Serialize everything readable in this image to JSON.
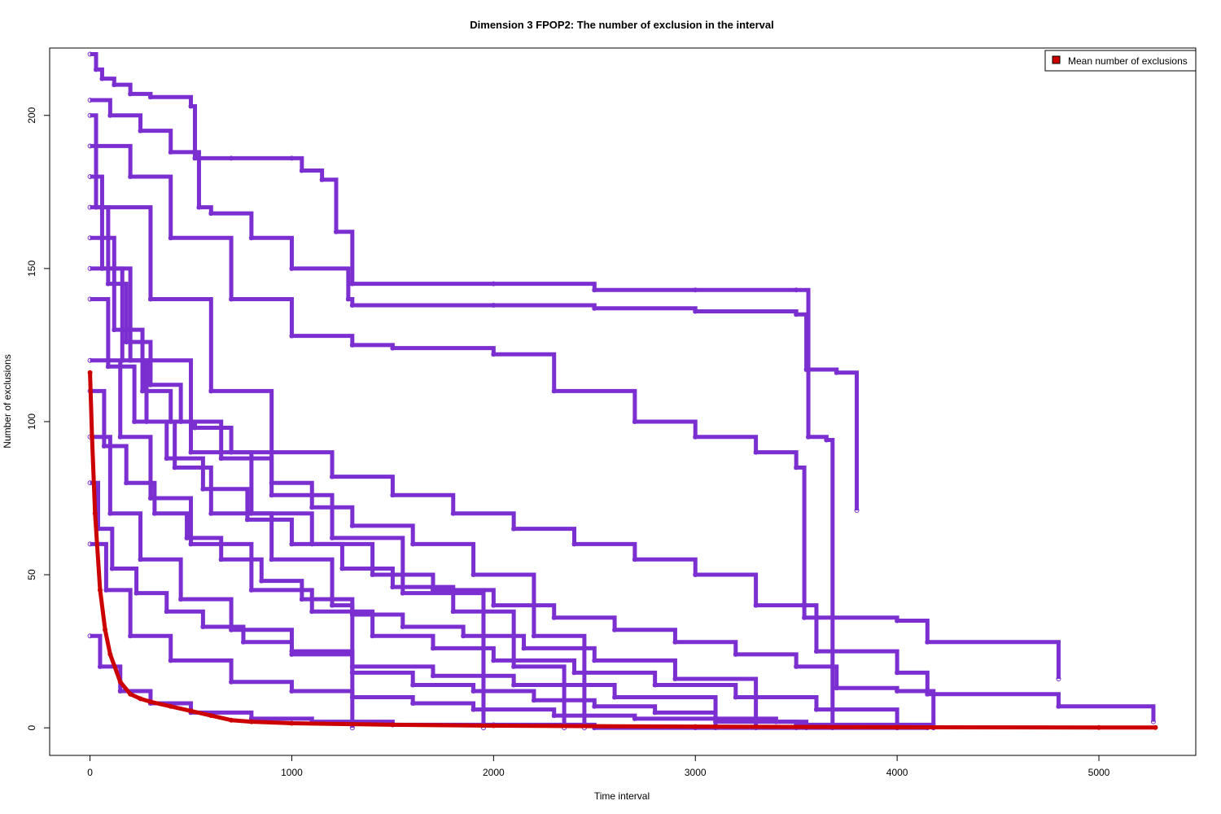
{
  "chart_data": {
    "type": "line",
    "title": "Dimension 3 FPOP2: The number of exclusion in the interval",
    "xlabel": "Time interval",
    "ylabel": "Number of exclusions",
    "xlim": [
      -200,
      5480
    ],
    "ylim": [
      -9,
      222
    ],
    "xticks": [
      0,
      1000,
      2000,
      3000,
      4000,
      5000
    ],
    "yticks": [
      0,
      50,
      100,
      150,
      200
    ],
    "legend": {
      "position": "top-right",
      "entries": [
        {
          "label": "Mean number of exclusions",
          "color": "#cc0000"
        }
      ]
    },
    "colors": {
      "runs": "#7b2fd0",
      "mean": "#cc0000"
    },
    "series": [
      {
        "name": "Mean number of exclusions",
        "x": [
          0,
          10,
          25,
          50,
          75,
          100,
          150,
          200,
          250,
          300,
          400,
          500,
          600,
          700,
          800,
          1000,
          1500,
          2000,
          3000,
          4000,
          5000,
          5280
        ],
        "y": [
          116,
          95,
          70,
          45,
          32,
          24,
          15,
          11,
          9.5,
          8.5,
          7,
          5.5,
          4,
          2.5,
          2,
          1.5,
          1,
          0.7,
          0.4,
          0.2,
          0.1,
          0.1
        ]
      },
      {
        "x": [
          0,
          30,
          60,
          120,
          200,
          300,
          500,
          520,
          700,
          1000,
          1050,
          1150,
          1220,
          1300,
          2000,
          2500,
          3000,
          3500,
          3560,
          3650,
          3680
        ],
        "y": [
          220,
          215,
          212,
          210,
          207,
          206,
          203,
          186,
          186,
          186,
          182,
          179,
          162,
          145,
          145,
          143,
          143,
          143,
          95,
          94,
          0
        ]
      },
      {
        "x": [
          0,
          100,
          250,
          400,
          540,
          600,
          800,
          1000,
          1280,
          1300,
          2000,
          2500,
          3000,
          3500,
          3550,
          3700,
          3800
        ],
        "y": [
          205,
          200,
          195,
          188,
          170,
          168,
          160,
          150,
          140,
          138,
          138,
          137,
          136,
          135,
          117,
          116,
          71
        ]
      },
      {
        "x": [
          0,
          200,
          400,
          700,
          1000,
          1300,
          1500,
          2000,
          2300,
          2700,
          3000,
          3300,
          3500,
          3540,
          4000,
          4150,
          4800
        ],
        "y": [
          190,
          180,
          160,
          140,
          128,
          125,
          124,
          122,
          110,
          100,
          95,
          90,
          85,
          36,
          35,
          28,
          16
        ]
      },
      {
        "x": [
          0,
          300,
          600,
          900,
          1200,
          1500,
          1800,
          2100,
          2400,
          2700,
          3000,
          3300,
          3600,
          4000,
          4150,
          4800,
          5270
        ],
        "y": [
          170,
          140,
          110,
          90,
          82,
          76,
          70,
          65,
          60,
          55,
          50,
          40,
          25,
          18,
          11,
          7,
          2
        ]
      },
      {
        "x": [
          0,
          200,
          500,
          800,
          1100,
          1400,
          1700,
          2000,
          2300,
          2600,
          2900,
          3200,
          3500,
          3700,
          4000,
          4180
        ],
        "y": [
          150,
          120,
          90,
          70,
          60,
          50,
          45,
          40,
          36,
          32,
          28,
          24,
          20,
          13,
          12,
          0
        ]
      },
      {
        "x": [
          0,
          150,
          300,
          500,
          800,
          1100,
          1400,
          1700,
          2000,
          2400,
          2800,
          3200,
          3600,
          4000
        ],
        "y": [
          120,
          95,
          75,
          60,
          45,
          38,
          30,
          26,
          22,
          18,
          14,
          10,
          6,
          0
        ]
      },
      {
        "x": [
          0,
          100,
          250,
          450,
          700,
          1000,
          1300,
          1600,
          1900,
          2200,
          2500,
          2800,
          3100,
          3400,
          3550
        ],
        "y": [
          95,
          70,
          55,
          42,
          32,
          25,
          18,
          14,
          12,
          9,
          7,
          5,
          3,
          2,
          0
        ]
      },
      {
        "x": [
          0,
          80,
          200,
          400,
          700,
          1000,
          1300,
          1600,
          1900,
          2300,
          2700,
          3100,
          3500,
          4000,
          4180
        ],
        "y": [
          60,
          45,
          30,
          22,
          15,
          12,
          10,
          8,
          6,
          4,
          3,
          2,
          1,
          1,
          0
        ]
      },
      {
        "x": [
          0,
          50,
          150,
          300,
          500,
          800,
          1100,
          1500,
          2000,
          2500,
          3000,
          3500,
          4000,
          4150
        ],
        "y": [
          30,
          20,
          12,
          8,
          5,
          3,
          2,
          1,
          1,
          0,
          0,
          0,
          0,
          0
        ]
      },
      {
        "x": [
          0,
          60,
          160,
          280,
          420,
          600,
          900,
          1200,
          1300
        ],
        "y": [
          180,
          150,
          120,
          100,
          85,
          70,
          55,
          40,
          0
        ]
      },
      {
        "x": [
          0,
          120,
          260,
          400,
          520,
          700,
          900,
          1100,
          1300,
          1600,
          1900,
          2200,
          2450
        ],
        "y": [
          160,
          130,
          110,
          100,
          98,
          90,
          80,
          72,
          66,
          60,
          50,
          30,
          0
        ]
      },
      {
        "x": [
          0,
          90,
          220,
          380,
          560,
          780,
          1000,
          1250,
          1500,
          1800,
          2100,
          2350
        ],
        "y": [
          140,
          118,
          100,
          88,
          78,
          68,
          60,
          52,
          46,
          38,
          20,
          0
        ]
      },
      {
        "x": [
          0,
          70,
          180,
          320,
          480,
          650,
          850,
          1050,
          1300,
          1550,
          1850,
          2150,
          2500,
          2900,
          3300
        ],
        "y": [
          110,
          92,
          80,
          70,
          62,
          55,
          48,
          42,
          37,
          33,
          30,
          26,
          22,
          16,
          0
        ]
      },
      {
        "x": [
          0,
          40,
          110,
          230,
          380,
          560,
          760,
          1000,
          1300,
          1700,
          2100,
          2600,
          3100
        ],
        "y": [
          80,
          65,
          52,
          44,
          38,
          33,
          28,
          24,
          20,
          17,
          14,
          10,
          0
        ]
      },
      {
        "x": [
          0,
          30,
          90,
          180,
          300,
          450,
          650,
          900,
          1200,
          1550,
          1950
        ],
        "y": [
          200,
          170,
          145,
          126,
          112,
          100,
          88,
          76,
          62,
          44,
          0
        ]
      }
    ]
  }
}
